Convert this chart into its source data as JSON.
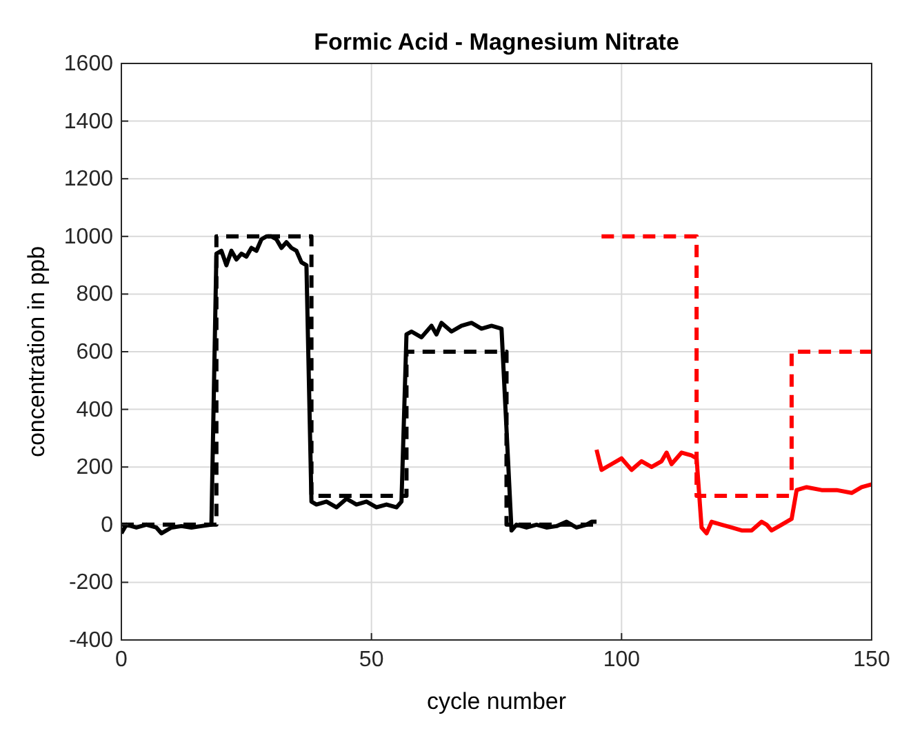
{
  "chart_data": {
    "type": "line",
    "title": "Formic Acid - Magnesium Nitrate",
    "xlabel": "cycle number",
    "ylabel": "concentration in ppb",
    "xlim": [
      0,
      150
    ],
    "xticks": [
      0,
      50,
      100,
      150
    ],
    "ylim": [
      -400,
      1600
    ],
    "yticks": [
      -400,
      -200,
      0,
      200,
      400,
      600,
      800,
      1000,
      1200,
      1400,
      1600
    ],
    "grid": true,
    "marker": "none",
    "series": [
      {
        "color": "#000000",
        "line_style": "dashed",
        "x": [
          0,
          19,
          19,
          38,
          38,
          57,
          57,
          77,
          77,
          95
        ],
        "values": [
          0,
          0,
          1000,
          1000,
          100,
          100,
          600,
          600,
          0,
          0
        ]
      },
      {
        "color": "#000000",
        "line_style": "solid",
        "x": [
          0,
          1,
          3,
          5,
          7,
          8,
          10,
          12,
          14,
          16,
          18,
          19,
          20,
          21,
          22,
          23,
          24,
          25,
          26,
          27,
          28,
          29,
          30,
          31,
          32,
          33,
          34,
          35,
          36,
          37,
          38,
          39,
          41,
          43,
          45,
          47,
          49,
          51,
          53,
          55,
          56,
          57,
          58,
          60,
          62,
          63,
          64,
          66,
          68,
          70,
          72,
          74,
          76,
          78,
          79,
          81,
          83,
          85,
          87,
          89,
          91,
          93,
          94,
          95
        ],
        "values": [
          -30,
          0,
          -10,
          0,
          -10,
          -30,
          -10,
          -5,
          -10,
          -5,
          0,
          940,
          950,
          900,
          950,
          920,
          940,
          930,
          960,
          950,
          990,
          1000,
          1000,
          990,
          960,
          980,
          960,
          950,
          910,
          900,
          80,
          70,
          80,
          60,
          90,
          70,
          80,
          60,
          70,
          60,
          80,
          660,
          670,
          650,
          690,
          660,
          700,
          670,
          690,
          700,
          680,
          690,
          680,
          -20,
          0,
          -10,
          0,
          -10,
          -5,
          10,
          -10,
          0,
          10,
          10
        ]
      },
      {
        "color": "#ff0000",
        "line_style": "dashed",
        "x": [
          96,
          115,
          115,
          134,
          134,
          150
        ],
        "values": [
          1000,
          1000,
          100,
          100,
          600,
          600
        ]
      },
      {
        "color": "#ff0000",
        "line_style": "solid",
        "x": [
          95,
          96,
          98,
          100,
          102,
          104,
          106,
          108,
          109,
          110,
          112,
          114,
          115,
          116,
          117,
          118,
          120,
          122,
          124,
          126,
          128,
          129,
          130,
          132,
          134,
          135,
          137,
          140,
          143,
          146,
          148,
          150
        ],
        "values": [
          260,
          190,
          210,
          230,
          190,
          220,
          200,
          220,
          250,
          210,
          250,
          240,
          230,
          -10,
          -30,
          10,
          0,
          -10,
          -20,
          -20,
          10,
          0,
          -20,
          0,
          20,
          120,
          130,
          120,
          120,
          110,
          130,
          140
        ]
      }
    ]
  }
}
